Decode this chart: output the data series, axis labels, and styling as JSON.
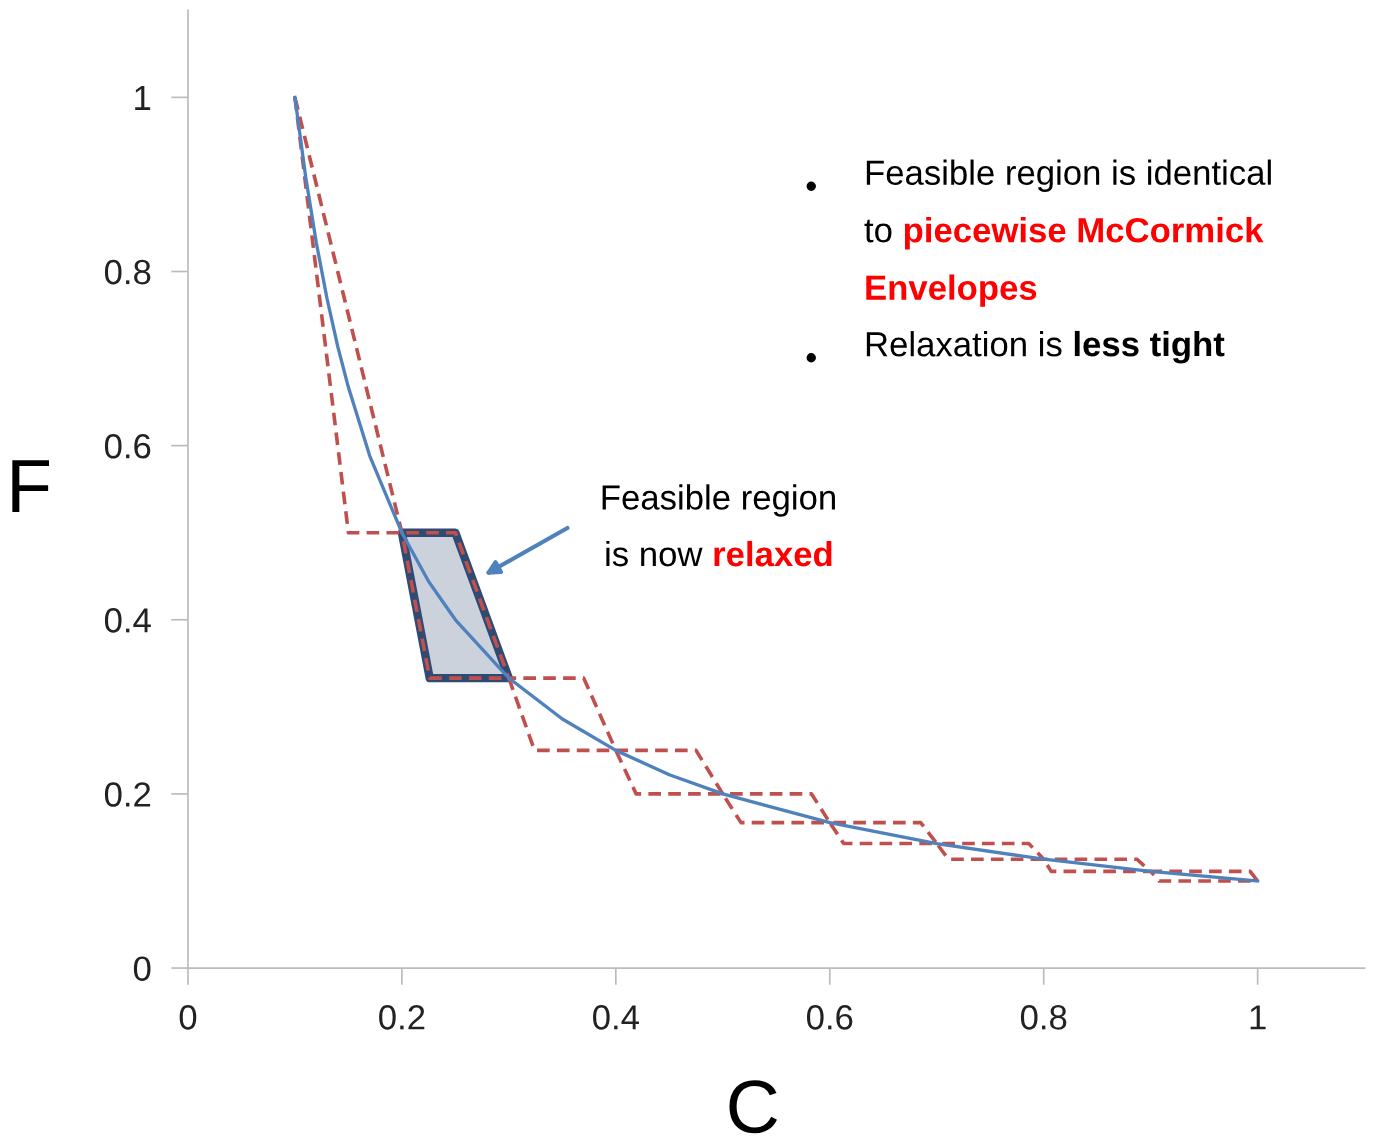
{
  "chart_data": {
    "type": "line",
    "xlabel": "C",
    "ylabel": "F",
    "xlim": [
      0,
      1.1
    ],
    "ylim": [
      0,
      1.1
    ],
    "xticks": [
      0,
      0.2,
      0.4,
      0.6,
      0.8,
      1
    ],
    "yticks": [
      0,
      0.2,
      0.4,
      0.6,
      0.8,
      1
    ],
    "grid": false,
    "marker": "none",
    "series": [
      {
        "color": "#c0504d",
        "line_style": "dashed",
        "x": [
          0.1,
          0.15,
          0.2,
          0.25,
          0.3,
          0.37,
          0.4,
          0.475,
          0.5,
          0.583,
          0.6,
          0.685,
          0.7,
          0.786,
          0.8,
          0.887,
          0.9,
          0.993,
          1.0
        ],
        "values": [
          1,
          0.5,
          0.5,
          0.5,
          0.333,
          0.333,
          0.25,
          0.25,
          0.2,
          0.2,
          0.167,
          0.167,
          0.143,
          0.143,
          0.125,
          0.125,
          0.111,
          0.111,
          0.1
        ]
      },
      {
        "color": "#c0504d",
        "line_style": "dashed",
        "x": [
          0.1,
          0.2,
          0.226,
          0.3,
          0.324,
          0.4,
          0.419,
          0.5,
          0.517,
          0.6,
          0.613,
          0.7,
          0.711,
          0.8,
          0.807,
          0.9,
          0.908,
          1.0
        ],
        "values": [
          1,
          0.5,
          0.333,
          0.333,
          0.25,
          0.25,
          0.2,
          0.2,
          0.167,
          0.167,
          0.143,
          0.143,
          0.125,
          0.125,
          0.111,
          0.111,
          0.1,
          0.1
        ]
      },
      {
        "type": "area",
        "color": "#2f4b74",
        "x": [
          0.2,
          0.25,
          0.3,
          0.226,
          0.2
        ],
        "values": [
          0.5,
          0.5,
          0.333,
          0.333,
          0.5
        ]
      },
      {
        "color": "#4f81bd",
        "line_style": "solid",
        "x": [
          0.1,
          0.11,
          0.12,
          0.13,
          0.14,
          0.15,
          0.17,
          0.2,
          0.225,
          0.25,
          0.3,
          0.35,
          0.4,
          0.45,
          0.5,
          0.6,
          0.7,
          0.8,
          0.9,
          1.0
        ],
        "values": [
          1,
          0.909,
          0.833,
          0.769,
          0.714,
          0.667,
          0.588,
          0.5,
          0.444,
          0.4,
          0.333,
          0.286,
          0.25,
          0.222,
          0.2,
          0.167,
          0.143,
          0.125,
          0.111,
          0.1
        ]
      }
    ],
    "annotations": [
      "•",
      "Feasible region is identical",
      "to ",
      "piecewise McCormick",
      "Envelopes",
      "•",
      "Relaxation is ",
      "less tight",
      "Feasible region",
      "is now ",
      "relaxed"
    ]
  }
}
